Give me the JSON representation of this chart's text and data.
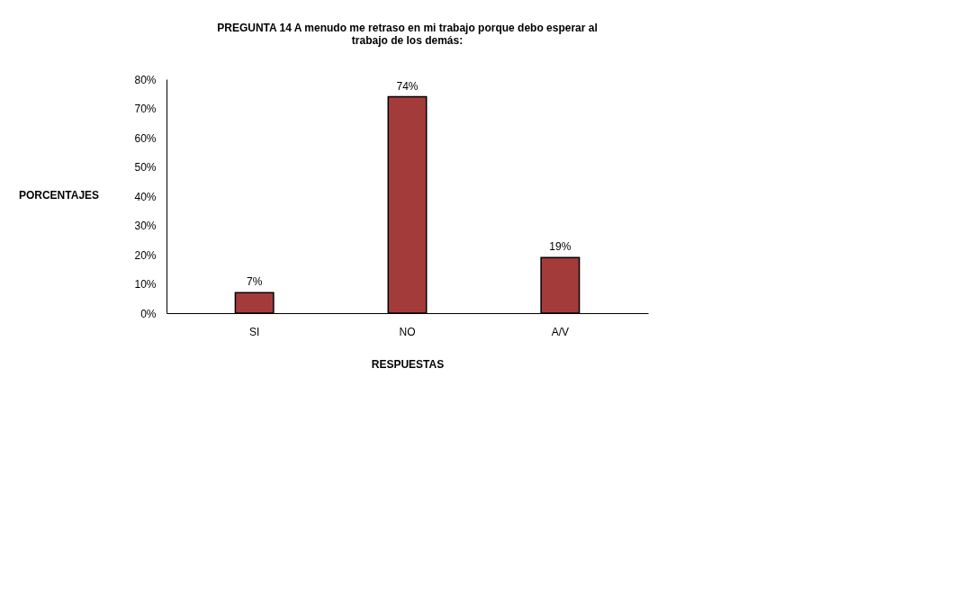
{
  "chart_data": {
    "type": "bar",
    "title": "PREGUNTA 14  A menudo me retraso en mi trabajo porque debo esperar al\ntrabajo de los demás:",
    "xlabel": "RESPUESTAS",
    "ylabel": "PORCENTAJES",
    "categories": [
      "SI",
      "NO",
      "A/V"
    ],
    "values": [
      7,
      74,
      19
    ],
    "value_labels": [
      "7%",
      "74%",
      "19%"
    ],
    "color": "#a33b3b",
    "ylim": [
      0,
      80
    ],
    "yticks": [
      {
        "value": 0,
        "label": "0%"
      },
      {
        "value": 10,
        "label": "10%"
      },
      {
        "value": 20,
        "label": "20%"
      },
      {
        "value": 30,
        "label": "30%"
      },
      {
        "value": 40,
        "label": "40%"
      },
      {
        "value": 50,
        "label": "50%"
      },
      {
        "value": 60,
        "label": "60%"
      },
      {
        "value": 70,
        "label": "70%"
      },
      {
        "value": 80,
        "label": "80%"
      }
    ],
    "grid": false
  }
}
